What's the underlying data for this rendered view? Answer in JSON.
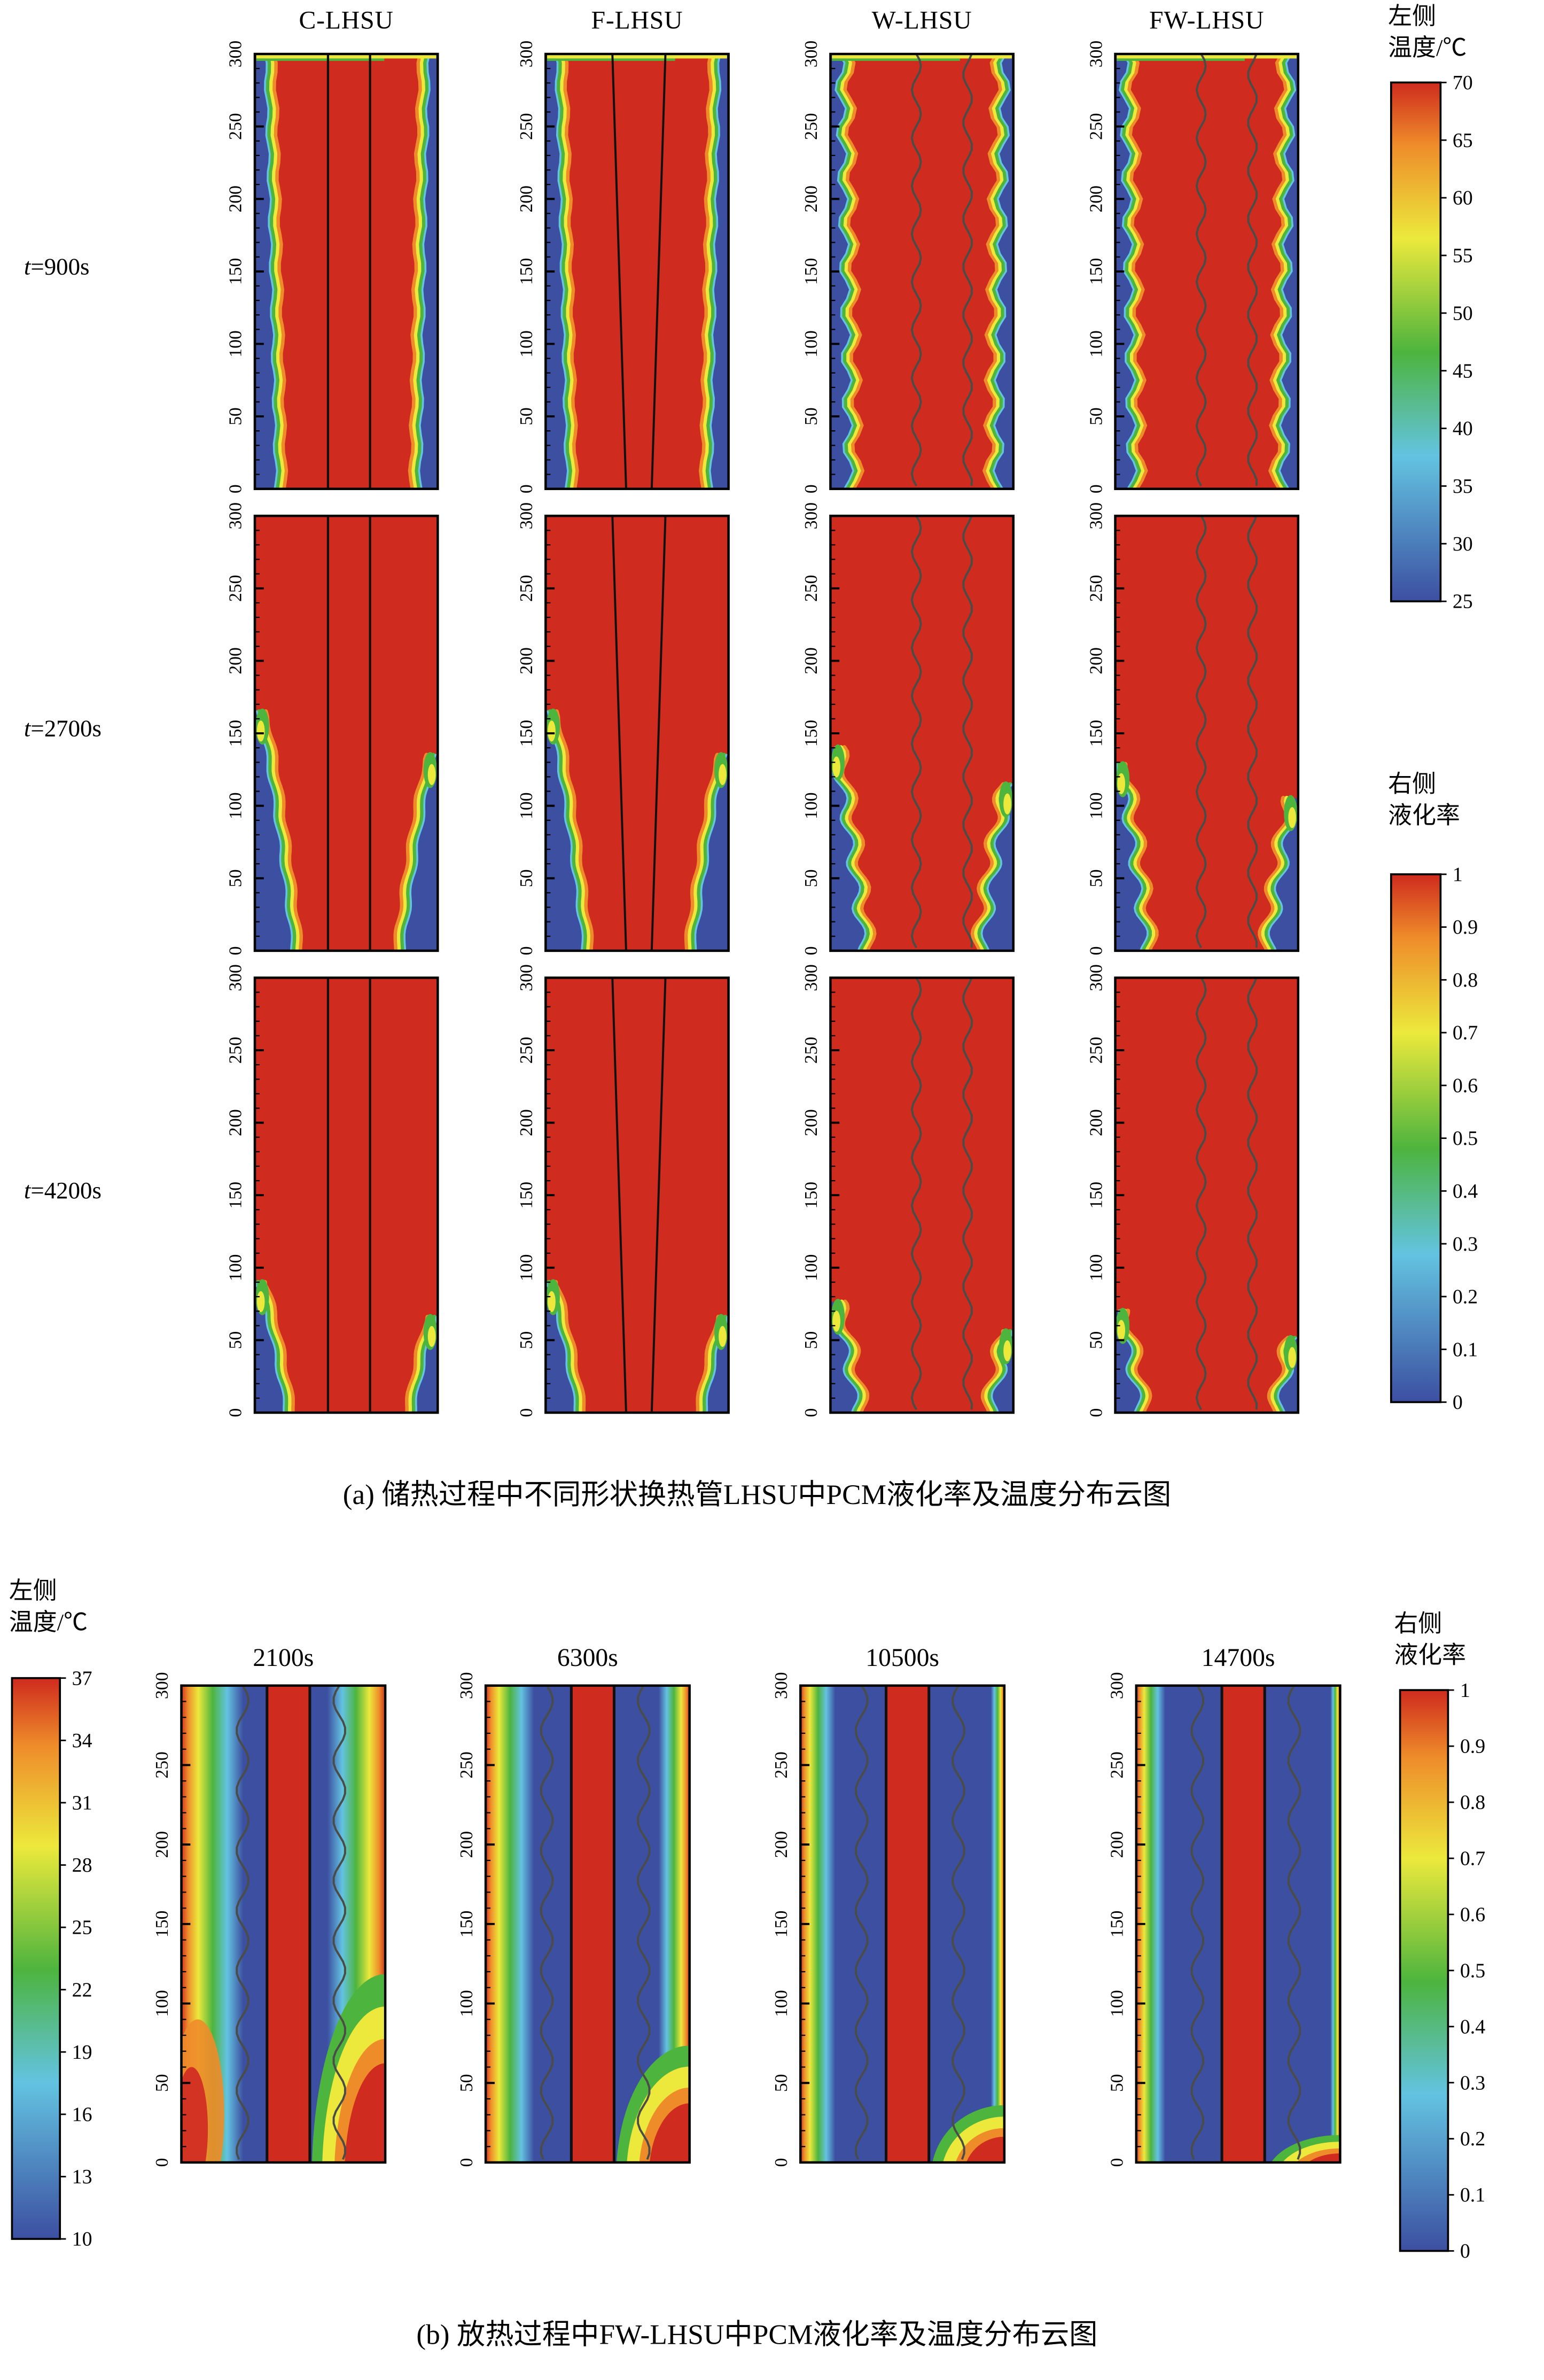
{
  "figure": {
    "part_a": {
      "caption": "(a) 储热过程中不同形状换热管LHSU中PCM液化率及温度分布云图",
      "column_titles": [
        "C-LHSU",
        "F-LHSU",
        "W-LHSU",
        "FW-LHSU"
      ],
      "row_labels": [
        "t=900s",
        "t=2700s",
        "t=4200s"
      ],
      "y_tick_labels": [
        "0",
        "50",
        "100",
        "150",
        "200",
        "250",
        "300"
      ],
      "temp_colorbar": {
        "title_lines": [
          "左侧",
          "温度/℃"
        ],
        "tick_labels": [
          "70",
          "65",
          "60",
          "55",
          "50",
          "45",
          "40",
          "35",
          "30",
          "25"
        ]
      },
      "liquid_colorbar": {
        "title_lines": [
          "右侧",
          "液化率"
        ],
        "tick_labels": [
          "1",
          "0.9",
          "0.8",
          "0.7",
          "0.6",
          "0.5",
          "0.4",
          "0.3",
          "0.2",
          "0.1",
          "0"
        ]
      }
    },
    "part_b": {
      "caption": "(b) 放热过程中FW-LHSU中PCM液化率及温度分布云图",
      "panel_titles": [
        "2100s",
        "6300s",
        "10500s",
        "14700s"
      ],
      "y_tick_labels": [
        "0",
        "50",
        "100",
        "150",
        "200",
        "250",
        "300"
      ],
      "temp_colorbar": {
        "title_lines": [
          "左侧",
          "温度/℃"
        ],
        "tick_labels": [
          "37",
          "34",
          "31",
          "28",
          "25",
          "22",
          "19",
          "16",
          "13",
          "10"
        ]
      },
      "liquid_colorbar": {
        "title_lines": [
          "右侧",
          "液化率"
        ],
        "tick_labels": [
          "1",
          "0.9",
          "0.8",
          "0.7",
          "0.6",
          "0.5",
          "0.4",
          "0.3",
          "0.2",
          "0.1",
          "0"
        ]
      }
    }
  },
  "colors": {
    "hot_red": "#cf2b1e",
    "deep_red": "#d23322",
    "orange": "#ee8c2a",
    "yellow": "#ece93c",
    "green": "#4db43e",
    "cyan": "#63c3e1",
    "cold_blue": "#3c4fa1",
    "line_black": "#111111",
    "wavy_line": "#4a4c48"
  },
  "chart_data": [
    {
      "type": "heatmap",
      "subfigure": "a",
      "title": "(a) 储热过程中不同形状换热管LHSU中PCM液化率及温度分布云图",
      "process": "储热 (melting / charging)",
      "columns": [
        "C-LHSU",
        "F-LHSU",
        "W-LHSU",
        "FW-LHSU"
      ],
      "tube_shape_by_column": [
        "straight",
        "slant",
        "wavy",
        "wavy"
      ],
      "rows": [
        "t=900s",
        "t=2700s",
        "t=4200s"
      ],
      "y_axis": {
        "range": [
          0,
          300
        ],
        "ticks": [
          0,
          50,
          100,
          150,
          200,
          250,
          300
        ]
      },
      "left_half_field": "温度/℃",
      "right_half_field": "液化率",
      "temp_scale": {
        "min": 25,
        "max": 70,
        "ticks": [
          25,
          30,
          35,
          40,
          45,
          50,
          55,
          60,
          65,
          70
        ]
      },
      "liquid_scale": {
        "min": 0,
        "max": 1,
        "ticks": [
          0,
          0.1,
          0.2,
          0.3,
          0.4,
          0.5,
          0.6,
          0.7,
          0.8,
          0.9,
          1
        ]
      },
      "legend_position": "right",
      "solid_region_extent": [
        {
          "row": "t=900s",
          "left_front_height": 1.0,
          "left_width_bottom": 0.11,
          "right_front_height": 1.0,
          "right_width_bottom": 0.09,
          "top_band": true
        },
        {
          "row": "t=2700s",
          "left_front_height": 0.55,
          "left_width_bottom": 0.2,
          "right_front_height": 0.45,
          "right_width_bottom": 0.18,
          "top_band": false
        },
        {
          "row": "t=4200s",
          "left_front_height": 0.3,
          "left_width_bottom": 0.16,
          "right_front_height": 0.22,
          "right_width_bottom": 0.12,
          "top_band": false
        }
      ],
      "column_melt_factor": [
        1.0,
        1.0,
        0.85,
        0.78
      ]
    },
    {
      "type": "heatmap",
      "subfigure": "b",
      "title": "(b) 放热过程中FW-LHSU中PCM液化率及温度分布云图",
      "process": "放热 (solidification / discharging)",
      "columns": [
        "2100s",
        "6300s",
        "10500s",
        "14700s"
      ],
      "y_axis": {
        "range": [
          0,
          300
        ],
        "ticks": [
          0,
          50,
          100,
          150,
          200,
          250,
          300
        ]
      },
      "left_half_field": "温度/℃",
      "right_half_field": "液化率",
      "temp_scale": {
        "min": 10,
        "max": 37,
        "ticks": [
          10,
          13,
          16,
          19,
          22,
          25,
          28,
          31,
          34,
          37
        ]
      },
      "liquid_scale": {
        "min": 0,
        "max": 1,
        "ticks": [
          0,
          0.1,
          0.2,
          0.3,
          0.4,
          0.5,
          0.6,
          0.7,
          0.8,
          0.9,
          1
        ]
      },
      "panels": [
        {
          "time": "2100s",
          "left_gradient_width": 0.32,
          "right_gradient_width": 0.3,
          "bottom_right_liquid_height": 0.34,
          "bottom_left_hot": true
        },
        {
          "time": "6300s",
          "left_gradient_width": 0.25,
          "right_gradient_width": 0.16,
          "bottom_right_liquid_height": 0.22,
          "bottom_left_hot": false
        },
        {
          "time": "10500s",
          "left_gradient_width": 0.18,
          "right_gradient_width": 0.07,
          "bottom_right_liquid_height": 0.12,
          "bottom_left_hot": false
        },
        {
          "time": "14700s",
          "left_gradient_width": 0.15,
          "right_gradient_width": 0.05,
          "bottom_right_liquid_height": 0.07,
          "bottom_left_hot": false
        }
      ]
    }
  ]
}
